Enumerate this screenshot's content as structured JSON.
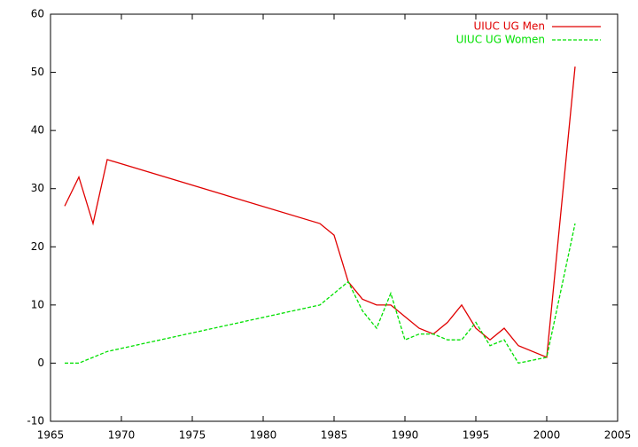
{
  "chart_data": {
    "type": "line",
    "xlim": [
      1965,
      2005
    ],
    "xticks": [
      1965,
      1970,
      1975,
      1980,
      1985,
      1990,
      1995,
      2000,
      2005
    ],
    "ylim": [
      -10,
      60
    ],
    "yticks": [
      -10,
      0,
      10,
      20,
      30,
      40,
      50,
      60
    ],
    "grid": false,
    "legend": "top-right",
    "series": [
      {
        "name": "UIUC UG Men",
        "color": "#e00000",
        "style": "solid",
        "x": [
          1966,
          1967,
          1968,
          1969,
          1984,
          1985,
          1986,
          1987,
          1988,
          1989,
          1990,
          1991,
          1992,
          1993,
          1994,
          1995,
          1996,
          1997,
          1998,
          2000,
          2002
        ],
        "values": [
          27,
          32,
          24,
          35,
          24,
          22,
          14,
          11,
          10,
          10,
          8,
          6,
          5,
          7,
          10,
          6,
          4,
          6,
          3,
          1,
          51
        ]
      },
      {
        "name": "UIUC UG Women",
        "color": "#00e000",
        "style": "dashed",
        "x": [
          1966,
          1967,
          1969,
          1984,
          1986,
          1987,
          1988,
          1989,
          1990,
          1991,
          1992,
          1993,
          1994,
          1995,
          1996,
          1997,
          1998,
          2000,
          2002
        ],
        "values": [
          0,
          0,
          2,
          10,
          14,
          9,
          6,
          12,
          4,
          5,
          5,
          4,
          4,
          7,
          3,
          4,
          0,
          1,
          24
        ]
      }
    ]
  }
}
